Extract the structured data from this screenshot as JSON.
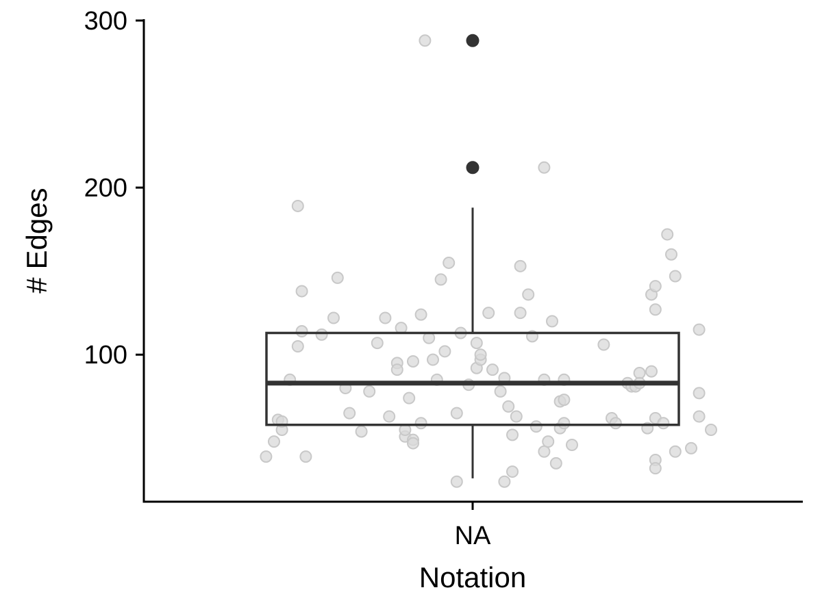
{
  "chart_data": {
    "type": "box",
    "title": "",
    "xlabel": "Notation",
    "ylabel": "# Edges",
    "categories": [
      "NA"
    ],
    "ylim": [
      12,
      300
    ],
    "yticks": [
      100,
      200,
      300
    ],
    "grid": false,
    "legend": "none",
    "box": {
      "category": "NA",
      "lower_whisker": 26,
      "q1": 58,
      "median": 83,
      "q3": 113,
      "upper_whisker": 188,
      "outliers": [
        212,
        288
      ]
    },
    "points": [
      {
        "x": -0.52,
        "y": 39
      },
      {
        "x": -0.5,
        "y": 48
      },
      {
        "x": -0.49,
        "y": 61
      },
      {
        "x": -0.48,
        "y": 55
      },
      {
        "x": -0.48,
        "y": 60
      },
      {
        "x": -0.46,
        "y": 85
      },
      {
        "x": -0.44,
        "y": 189
      },
      {
        "x": -0.43,
        "y": 138
      },
      {
        "x": -0.43,
        "y": 114
      },
      {
        "x": -0.44,
        "y": 105
      },
      {
        "x": -0.42,
        "y": 39
      },
      {
        "x": -0.38,
        "y": 112
      },
      {
        "x": -0.35,
        "y": 122
      },
      {
        "x": -0.34,
        "y": 146
      },
      {
        "x": -0.32,
        "y": 80
      },
      {
        "x": -0.31,
        "y": 65
      },
      {
        "x": -0.28,
        "y": 54
      },
      {
        "x": -0.26,
        "y": 78
      },
      {
        "x": -0.24,
        "y": 107
      },
      {
        "x": -0.22,
        "y": 122
      },
      {
        "x": -0.21,
        "y": 63
      },
      {
        "x": -0.19,
        "y": 95
      },
      {
        "x": -0.19,
        "y": 91
      },
      {
        "x": -0.18,
        "y": 116
      },
      {
        "x": -0.17,
        "y": 51
      },
      {
        "x": -0.17,
        "y": 55
      },
      {
        "x": -0.16,
        "y": 74
      },
      {
        "x": -0.15,
        "y": 49
      },
      {
        "x": -0.15,
        "y": 96
      },
      {
        "x": -0.15,
        "y": 47
      },
      {
        "x": -0.13,
        "y": 124
      },
      {
        "x": -0.13,
        "y": 59
      },
      {
        "x": -0.12,
        "y": 288
      },
      {
        "x": -0.11,
        "y": 110
      },
      {
        "x": -0.1,
        "y": 97
      },
      {
        "x": -0.09,
        "y": 85
      },
      {
        "x": -0.08,
        "y": 145
      },
      {
        "x": -0.07,
        "y": 102
      },
      {
        "x": -0.06,
        "y": 155
      },
      {
        "x": -0.04,
        "y": 65
      },
      {
        "x": -0.04,
        "y": 24
      },
      {
        "x": -0.03,
        "y": 113
      },
      {
        "x": -0.01,
        "y": 82
      },
      {
        "x": 0.01,
        "y": 107
      },
      {
        "x": 0.01,
        "y": 92
      },
      {
        "x": 0.02,
        "y": 97
      },
      {
        "x": 0.02,
        "y": 100
      },
      {
        "x": 0.04,
        "y": 125
      },
      {
        "x": 0.05,
        "y": 91
      },
      {
        "x": 0.07,
        "y": 78
      },
      {
        "x": 0.08,
        "y": 86
      },
      {
        "x": 0.08,
        "y": 24
      },
      {
        "x": 0.09,
        "y": 69
      },
      {
        "x": 0.1,
        "y": 52
      },
      {
        "x": 0.1,
        "y": 30
      },
      {
        "x": 0.11,
        "y": 63
      },
      {
        "x": 0.12,
        "y": 125
      },
      {
        "x": 0.12,
        "y": 153
      },
      {
        "x": 0.14,
        "y": 136
      },
      {
        "x": 0.15,
        "y": 111
      },
      {
        "x": 0.16,
        "y": 57
      },
      {
        "x": 0.18,
        "y": 85
      },
      {
        "x": 0.18,
        "y": 212
      },
      {
        "x": 0.18,
        "y": 42
      },
      {
        "x": 0.19,
        "y": 48
      },
      {
        "x": 0.2,
        "y": 120
      },
      {
        "x": 0.21,
        "y": 35
      },
      {
        "x": 0.22,
        "y": 72
      },
      {
        "x": 0.22,
        "y": 56
      },
      {
        "x": 0.23,
        "y": 59
      },
      {
        "x": 0.23,
        "y": 85
      },
      {
        "x": 0.23,
        "y": 73
      },
      {
        "x": 0.25,
        "y": 46
      },
      {
        "x": 0.33,
        "y": 106
      },
      {
        "x": 0.35,
        "y": 62
      },
      {
        "x": 0.36,
        "y": 59
      },
      {
        "x": 0.39,
        "y": 83
      },
      {
        "x": 0.4,
        "y": 81
      },
      {
        "x": 0.41,
        "y": 81
      },
      {
        "x": 0.42,
        "y": 89
      },
      {
        "x": 0.42,
        "y": 83
      },
      {
        "x": 0.44,
        "y": 56
      },
      {
        "x": 0.45,
        "y": 90
      },
      {
        "x": 0.45,
        "y": 136
      },
      {
        "x": 0.46,
        "y": 141
      },
      {
        "x": 0.46,
        "y": 127
      },
      {
        "x": 0.46,
        "y": 62
      },
      {
        "x": 0.46,
        "y": 37
      },
      {
        "x": 0.46,
        "y": 32
      },
      {
        "x": 0.48,
        "y": 59
      },
      {
        "x": 0.49,
        "y": 172
      },
      {
        "x": 0.5,
        "y": 160
      },
      {
        "x": 0.51,
        "y": 42
      },
      {
        "x": 0.51,
        "y": 147
      },
      {
        "x": 0.55,
        "y": 44
      },
      {
        "x": 0.57,
        "y": 115
      },
      {
        "x": 0.57,
        "y": 77
      },
      {
        "x": 0.57,
        "y": 63
      },
      {
        "x": 0.6,
        "y": 55
      }
    ],
    "colors": {
      "box": "#333333",
      "outlier": "#333333",
      "point_fill": "#d9d9d9",
      "point_stroke": "#c8c8c8",
      "axis": "#000000"
    }
  }
}
